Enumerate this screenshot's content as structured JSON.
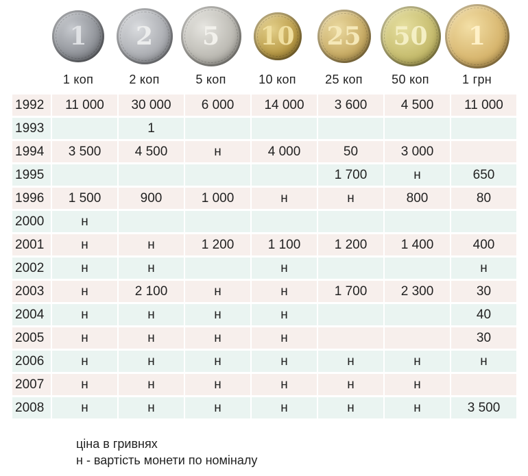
{
  "coins": [
    {
      "numeral": "1",
      "label": "1 коп",
      "style": "silver",
      "size": 76
    },
    {
      "numeral": "2",
      "label": "2 коп",
      "style": "silver2",
      "size": 82
    },
    {
      "numeral": "5",
      "label": "5 коп",
      "style": "silver3",
      "size": 88
    },
    {
      "numeral": "10",
      "label": "10 коп",
      "style": "gold",
      "size": 70
    },
    {
      "numeral": "25",
      "label": "25 коп",
      "style": "gold2",
      "size": 78
    },
    {
      "numeral": "50",
      "label": "50 коп",
      "style": "gold3",
      "size": 88
    },
    {
      "numeral": "1",
      "label": "1 грн",
      "style": "gold4",
      "size": 94
    }
  ],
  "rows": [
    {
      "year": "1992",
      "values": [
        "11 000",
        "30 000",
        "6 000",
        "14 000",
        "3 600",
        "4 500",
        "11 000"
      ]
    },
    {
      "year": "1993",
      "values": [
        "",
        "1",
        "",
        "",
        "",
        "",
        ""
      ]
    },
    {
      "year": "1994",
      "values": [
        "3 500",
        "4 500",
        "н",
        "4 000",
        "50",
        "3 000",
        ""
      ]
    },
    {
      "year": "1995",
      "values": [
        "",
        "",
        "",
        "",
        "1 700",
        "н",
        "650"
      ]
    },
    {
      "year": "1996",
      "values": [
        "1 500",
        "900",
        "1 000",
        "н",
        "н",
        "800",
        "80"
      ]
    },
    {
      "year": "2000",
      "values": [
        "н",
        "",
        "",
        "",
        "",
        "",
        ""
      ]
    },
    {
      "year": "2001",
      "values": [
        "н",
        "н",
        "1 200",
        "1 100",
        "1 200",
        "1 400",
        "400"
      ]
    },
    {
      "year": "2002",
      "values": [
        "н",
        "н",
        "",
        "н",
        "",
        "",
        "н"
      ]
    },
    {
      "year": "2003",
      "values": [
        "н",
        "2 100",
        "н",
        "н",
        "1 700",
        "2 300",
        "30"
      ]
    },
    {
      "year": "2004",
      "values": [
        "н",
        "н",
        "н",
        "н",
        "",
        "",
        "40"
      ]
    },
    {
      "year": "2005",
      "values": [
        "н",
        "н",
        "н",
        "н",
        "",
        "",
        "30"
      ]
    },
    {
      "year": "2006",
      "values": [
        "н",
        "н",
        "н",
        "н",
        "н",
        "н",
        "н"
      ]
    },
    {
      "year": "2007",
      "values": [
        "н",
        "н",
        "н",
        "н",
        "н",
        "н",
        ""
      ]
    },
    {
      "year": "2008",
      "values": [
        "н",
        "н",
        "н",
        "н",
        "н",
        "н",
        "3 500"
      ]
    }
  ],
  "notes": {
    "line1": "ціна в гривнях",
    "line2": "н - вартість монети по номіналу"
  },
  "colors": {
    "row_pink": "#f7efec",
    "row_green": "#eaf4f1"
  }
}
